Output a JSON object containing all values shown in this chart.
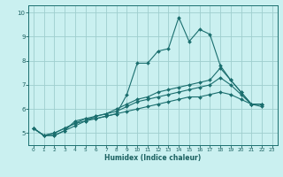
{
  "xlabel": "Humidex (Indice chaleur)",
  "bg_color": "#caf0f0",
  "grid_color": "#9ecece",
  "line_color": "#1a6e6e",
  "spine_color": "#1a6e6e",
  "tick_color": "#1a6060",
  "xlim": [
    -0.5,
    23.5
  ],
  "ylim": [
    4.5,
    10.3
  ],
  "yticks": [
    5,
    6,
    7,
    8,
    9,
    10
  ],
  "xticks": [
    0,
    1,
    2,
    3,
    4,
    5,
    6,
    7,
    8,
    9,
    10,
    11,
    12,
    13,
    14,
    15,
    16,
    17,
    18,
    19,
    20,
    21,
    22,
    23
  ],
  "lines": [
    [
      5.2,
      4.9,
      4.9,
      5.1,
      5.5,
      5.6,
      5.6,
      5.7,
      5.8,
      6.6,
      7.9,
      7.9,
      8.4,
      8.5,
      9.8,
      8.8,
      9.3,
      9.1,
      7.8,
      7.2,
      6.7,
      6.2,
      6.2
    ],
    [
      5.2,
      4.9,
      4.9,
      5.1,
      5.3,
      5.5,
      5.7,
      5.8,
      6.0,
      6.2,
      6.4,
      6.5,
      6.7,
      6.8,
      6.9,
      7.0,
      7.1,
      7.2,
      7.7,
      7.2,
      6.7,
      6.2,
      6.2
    ],
    [
      5.2,
      4.9,
      5.0,
      5.2,
      5.4,
      5.6,
      5.7,
      5.8,
      5.9,
      6.1,
      6.3,
      6.4,
      6.5,
      6.6,
      6.7,
      6.8,
      6.9,
      7.0,
      7.3,
      7.0,
      6.6,
      6.2,
      6.2
    ],
    [
      5.2,
      4.9,
      5.0,
      5.2,
      5.4,
      5.5,
      5.6,
      5.7,
      5.8,
      5.9,
      6.0,
      6.1,
      6.2,
      6.3,
      6.4,
      6.5,
      6.5,
      6.6,
      6.7,
      6.6,
      6.4,
      6.2,
      6.1
    ]
  ]
}
